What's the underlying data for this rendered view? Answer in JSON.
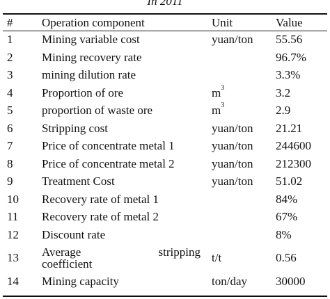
{
  "caption": "In 2011",
  "table": {
    "headers": {
      "num": "#",
      "name": "Operation component",
      "unit": "Unit",
      "value": "Value"
    },
    "rows": [
      {
        "num": "1",
        "name": "Mining  variable cost",
        "unit": "yuan/ton",
        "value": "55.56"
      },
      {
        "num": "2",
        "name": "Mining recovery rate",
        "unit": "",
        "value": "96.7%"
      },
      {
        "num": "3",
        "name": "mining dilution rate",
        "unit": "",
        "value": "3.3%"
      },
      {
        "num": "4",
        "name": "Proportion of ore",
        "unit": "m",
        "unit_sup": "3",
        "value": "3.2"
      },
      {
        "num": "5",
        "name": "proportion of waste ore",
        "unit": "m",
        "unit_sup": "3",
        "value": "2.9"
      },
      {
        "num": "6",
        "name": "Stripping cost",
        "unit": "yuan/ton",
        "value": "21.21"
      },
      {
        "num": "7",
        "name": "Price of concentrate metal 1",
        "unit": "yuan/ton",
        "value": "244600"
      },
      {
        "num": "8",
        "name": "Price of concentrate metal 2",
        "unit": "yuan/ton",
        "value": "212300"
      },
      {
        "num": "9",
        "name": "Treatment Cost",
        "unit": "yuan/ton",
        "value": "51.02"
      },
      {
        "num": "10",
        "name": "Recovery rate of  metal 1",
        "unit": "",
        "value": "84%"
      },
      {
        "num": "11",
        "name": "Recovery rate of  metal 2",
        "unit": "",
        "value": "67%"
      },
      {
        "num": "12",
        "name": "Discount rate",
        "unit": "",
        "value": "8%"
      },
      {
        "num": "13",
        "name_line1_left": "Average",
        "name_line1_right": "stripping",
        "name_line2": "coefficient",
        "unit": "t/t",
        "value": "0.56"
      },
      {
        "num": "14",
        "name": "Mining capacity",
        "unit": "ton/day",
        "value": "30000"
      }
    ]
  }
}
